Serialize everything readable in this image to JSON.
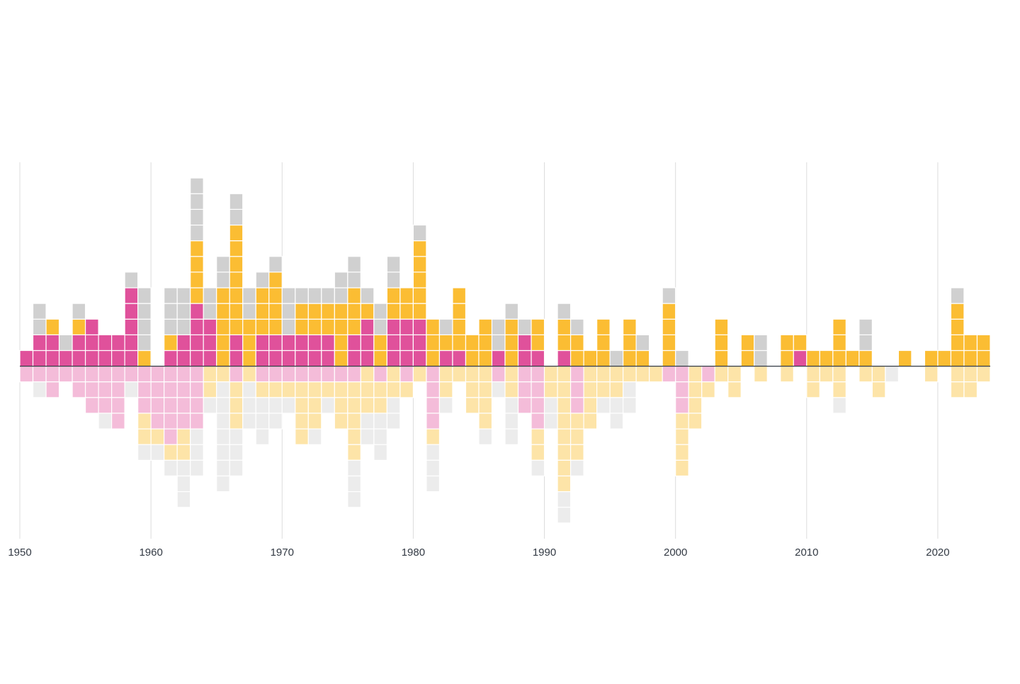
{
  "chart_data": {
    "type": "waffle",
    "x": [
      1950,
      1951,
      1952,
      1953,
      1954,
      1955,
      1956,
      1957,
      1958,
      1959,
      1960,
      1961,
      1962,
      1963,
      1964,
      1965,
      1966,
      1967,
      1968,
      1969,
      1970,
      1971,
      1972,
      1973,
      1974,
      1975,
      1976,
      1977,
      1978,
      1979,
      1980,
      1981,
      1982,
      1983,
      1984,
      1985,
      1986,
      1987,
      1988,
      1989,
      1990,
      1991,
      1992,
      1993,
      1994,
      1995,
      1996,
      1997,
      1998,
      1999,
      2000,
      2001,
      2002,
      2003,
      2004,
      2005,
      2006,
      2007,
      2008,
      2009,
      2010,
      2011,
      2012,
      2013,
      2014,
      2015,
      2016,
      2017,
      2018,
      2019,
      2020,
      2021,
      2022,
      2023
    ],
    "xlim": [
      1950,
      2024
    ],
    "xticks": [
      1950,
      1960,
      1970,
      1980,
      1990,
      2000,
      2010,
      2020
    ],
    "ylim": [
      -11,
      13
    ],
    "grid": true,
    "series": [
      {
        "color": "#e0519b",
        "values": [
          1,
          2,
          2,
          1,
          2,
          3,
          2,
          2,
          5,
          0,
          0,
          1,
          2,
          4,
          3,
          0,
          2,
          0,
          2,
          2,
          2,
          2,
          2,
          2,
          0,
          2,
          3,
          0,
          3,
          3,
          3,
          0,
          1,
          1,
          0,
          0,
          1,
          0,
          2,
          1,
          0,
          1,
          0,
          0,
          0,
          0,
          0,
          0,
          0,
          0,
          0,
          0,
          0,
          0,
          0,
          0,
          0,
          0,
          0,
          1,
          0,
          0,
          0,
          0,
          0,
          0,
          0,
          0,
          0,
          0,
          0,
          0,
          0,
          0
        ]
      },
      {
        "color": "#fbbd33",
        "values": [
          0,
          0,
          1,
          0,
          1,
          0,
          0,
          0,
          0,
          1,
          0,
          1,
          0,
          4,
          0,
          5,
          7,
          3,
          3,
          4,
          0,
          2,
          2,
          2,
          4,
          3,
          1,
          2,
          2,
          2,
          5,
          3,
          1,
          4,
          2,
          3,
          0,
          3,
          0,
          2,
          0,
          2,
          2,
          1,
          3,
          0,
          3,
          1,
          0,
          4,
          0,
          0,
          0,
          3,
          0,
          2,
          0,
          0,
          2,
          1,
          1,
          1,
          3,
          1,
          1,
          0,
          0,
          1,
          0,
          1,
          1,
          4,
          2,
          2
        ]
      },
      {
        "color": "#d0d0d0",
        "values": [
          0,
          2,
          0,
          1,
          1,
          0,
          0,
          0,
          1,
          4,
          0,
          3,
          3,
          4,
          2,
          2,
          2,
          2,
          1,
          1,
          3,
          1,
          1,
          1,
          2,
          2,
          1,
          2,
          2,
          0,
          1,
          0,
          1,
          0,
          0,
          0,
          2,
          1,
          1,
          0,
          0,
          1,
          1,
          0,
          0,
          1,
          0,
          1,
          0,
          1,
          1,
          0,
          0,
          0,
          0,
          0,
          2,
          0,
          0,
          0,
          0,
          0,
          0,
          0,
          2,
          0,
          0,
          0,
          0,
          0,
          0,
          1,
          0,
          0
        ]
      },
      {
        "color": "#f4bcd9",
        "values": [
          -1,
          -1,
          -2,
          -1,
          -2,
          -3,
          -3,
          -4,
          -1,
          -3,
          -4,
          -5,
          -4,
          -4,
          0,
          0,
          -1,
          0,
          -1,
          -1,
          -1,
          -1,
          -1,
          -1,
          -1,
          -1,
          0,
          -1,
          0,
          -1,
          0,
          -4,
          0,
          0,
          0,
          0,
          -1,
          0,
          -3,
          -4,
          0,
          0,
          -3,
          0,
          0,
          0,
          0,
          0,
          0,
          -1,
          -3,
          0,
          -1,
          0,
          0,
          0,
          0,
          0,
          0,
          0,
          0,
          0,
          0,
          0,
          0,
          0,
          0,
          0,
          0,
          0,
          0,
          0,
          0,
          0
        ]
      },
      {
        "color": "#fde4a8",
        "values": [
          0,
          0,
          0,
          0,
          0,
          0,
          0,
          0,
          0,
          -2,
          -1,
          -1,
          -2,
          0,
          -2,
          -1,
          -3,
          -1,
          -1,
          -1,
          -1,
          -4,
          -3,
          -1,
          -3,
          -5,
          -3,
          -2,
          -2,
          -1,
          -1,
          -1,
          -2,
          -1,
          -3,
          -4,
          0,
          -2,
          0,
          -2,
          -2,
          -8,
          -3,
          -4,
          -2,
          -2,
          -1,
          -1,
          -1,
          0,
          -4,
          -4,
          -1,
          -1,
          -2,
          0,
          -1,
          0,
          -1,
          0,
          -2,
          -1,
          -2,
          0,
          -1,
          -2,
          0,
          0,
          0,
          -1,
          0,
          -2,
          -2,
          -1
        ]
      },
      {
        "color": "#ececec",
        "values": [
          0,
          -1,
          0,
          0,
          0,
          0,
          -1,
          0,
          -1,
          -1,
          -1,
          -1,
          -3,
          -3,
          -1,
          -7,
          -3,
          -3,
          -3,
          -2,
          -1,
          0,
          -1,
          -1,
          0,
          -3,
          -2,
          -3,
          -2,
          0,
          0,
          -3,
          -1,
          0,
          0,
          -1,
          -1,
          -3,
          0,
          -1,
          -2,
          -2,
          -1,
          0,
          -1,
          -2,
          -2,
          0,
          0,
          0,
          0,
          0,
          0,
          0,
          0,
          0,
          0,
          0,
          0,
          0,
          0,
          0,
          -1,
          0,
          0,
          0,
          -1,
          0,
          0,
          0,
          0,
          0,
          0,
          0
        ]
      }
    ]
  }
}
